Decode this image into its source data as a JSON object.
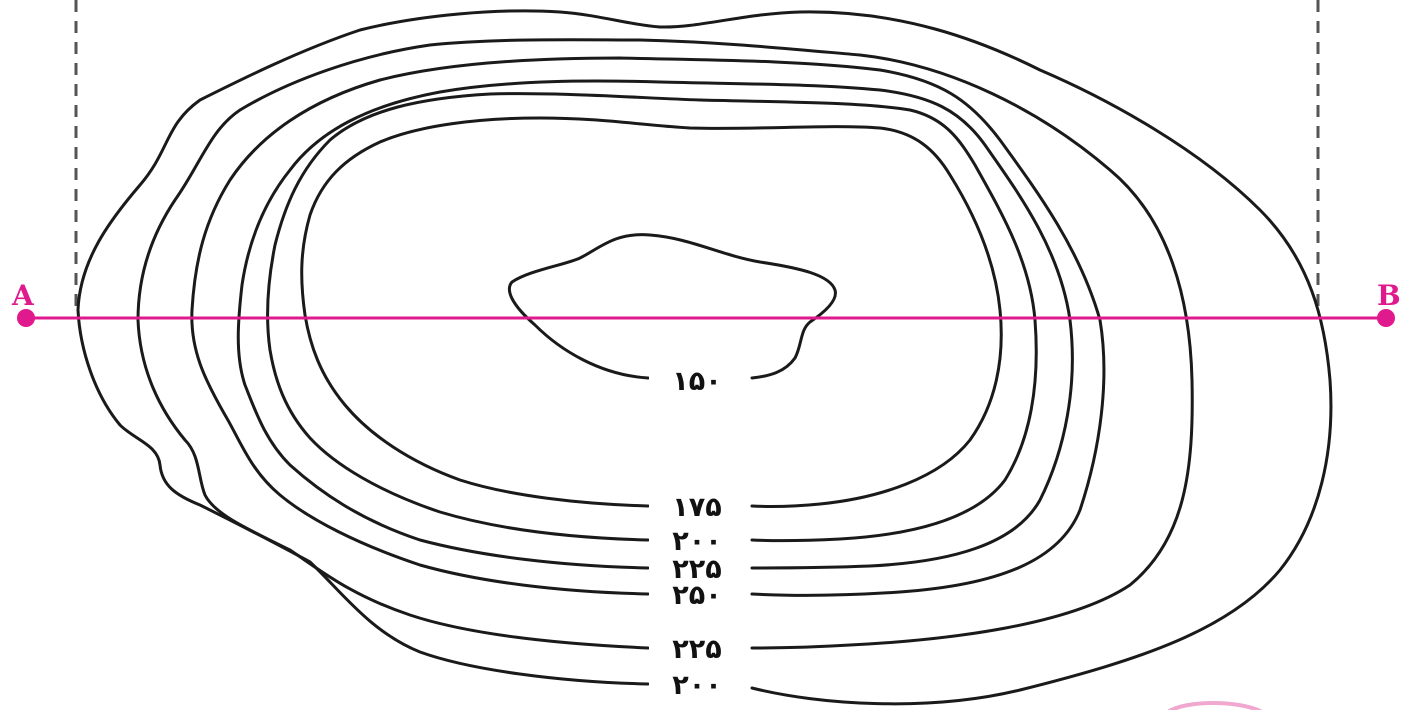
{
  "colors": {
    "contour": "#1a1a1a",
    "profile_line": "#e0198c",
    "guide_line": "#555555",
    "corner_mark": "#f0a8d0"
  },
  "points": {
    "left": "A",
    "right": "B"
  },
  "contours": [
    {
      "id": "c150",
      "label": "۱۵۰"
    },
    {
      "id": "c175",
      "label": "۱۷۵"
    },
    {
      "id": "c200-inner",
      "label": "۲۰۰"
    },
    {
      "id": "c225-inner",
      "label": "۲۲۵"
    },
    {
      "id": "c250",
      "label": "۲۵۰"
    },
    {
      "id": "c225-outer",
      "label": "۲۲۵"
    },
    {
      "id": "c200-outer",
      "label": "۲۰۰"
    }
  ]
}
